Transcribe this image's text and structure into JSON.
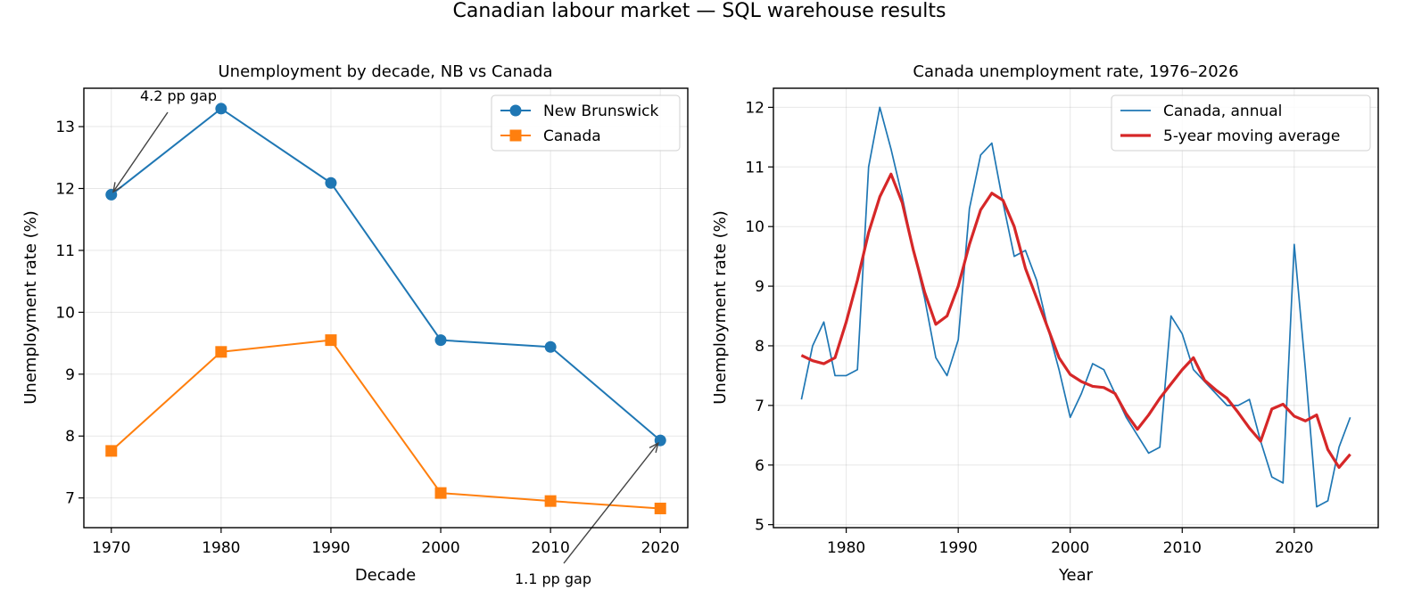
{
  "figure": {
    "suptitle": "Canadian labour market — SQL warehouse results"
  },
  "chart_data": [
    {
      "type": "line",
      "title": "Unemployment by decade, NB vs Canada",
      "xlabel": "Decade",
      "ylabel": "Unemployment rate (%)",
      "xlim": [
        1967.5,
        2022.5
      ],
      "ylim": [
        6.52,
        13.62
      ],
      "xticks": [
        "1970",
        "1980",
        "1990",
        "2000",
        "2010",
        "2020"
      ],
      "yticks": [
        "7",
        "8",
        "9",
        "10",
        "11",
        "12",
        "13"
      ],
      "grid": true,
      "legend_position": "upper right",
      "categories": [
        1970,
        1980,
        1990,
        2000,
        2010,
        2020
      ],
      "series": [
        {
          "name": "New Brunswick",
          "values": [
            11.9,
            13.29,
            12.09,
            9.55,
            9.44,
            7.93
          ],
          "color": "#1f77b4",
          "marker": "circle"
        },
        {
          "name": "Canada",
          "values": [
            7.76,
            9.36,
            9.55,
            7.08,
            6.95,
            6.83
          ],
          "color": "#ff7f0e",
          "marker": "square"
        }
      ],
      "annotations": [
        {
          "text": "4.2 pp gap",
          "x": 1970,
          "y": 11.9
        },
        {
          "text": "1.1 pp gap",
          "x": 2020,
          "y": 7.93
        }
      ]
    },
    {
      "type": "line",
      "title": "Canada unemployment rate, 1976–2026",
      "xlabel": "Year",
      "ylabel": "Unemployment rate (%)",
      "xlim": [
        1973.5,
        2027.5
      ],
      "ylim": [
        4.95,
        12.32
      ],
      "xticks": [
        "1980",
        "1990",
        "2000",
        "2010",
        "2020"
      ],
      "yticks": [
        "5",
        "6",
        "7",
        "8",
        "9",
        "10",
        "11",
        "12"
      ],
      "grid": true,
      "legend_position": "upper right",
      "x": [
        1976,
        1977,
        1978,
        1979,
        1980,
        1981,
        1982,
        1983,
        1984,
        1985,
        1986,
        1987,
        1988,
        1989,
        1990,
        1991,
        1992,
        1993,
        1994,
        1995,
        1996,
        1997,
        1998,
        1999,
        2000,
        2001,
        2002,
        2003,
        2004,
        2005,
        2006,
        2007,
        2008,
        2009,
        2010,
        2011,
        2012,
        2013,
        2014,
        2015,
        2016,
        2017,
        2018,
        2019,
        2020,
        2021,
        2022,
        2023,
        2024,
        2025
      ],
      "series": [
        {
          "name": "Canada, annual",
          "color": "#1f77b4",
          "values": [
            7.1,
            8.0,
            8.4,
            7.5,
            7.5,
            7.6,
            11.0,
            12.0,
            11.3,
            10.5,
            9.6,
            8.8,
            7.8,
            7.5,
            8.1,
            10.3,
            11.2,
            11.4,
            10.4,
            9.5,
            9.6,
            9.1,
            8.3,
            7.6,
            6.8,
            7.2,
            7.7,
            7.6,
            7.2,
            6.8,
            6.5,
            6.2,
            6.3,
            8.5,
            8.2,
            7.6,
            7.4,
            7.2,
            7.0,
            7.0,
            7.1,
            6.4,
            5.8,
            5.7,
            9.7,
            7.6,
            5.3,
            5.4,
            6.3,
            6.8
          ]
        },
        {
          "name": "5-year moving average",
          "color": "#d62728",
          "values": [
            7.84,
            7.75,
            7.7,
            7.8,
            8.4,
            9.1,
            9.9,
            10.5,
            10.88,
            10.4,
            9.6,
            8.9,
            8.36,
            8.5,
            9.0,
            9.7,
            10.28,
            10.56,
            10.44,
            10.0,
            9.3,
            8.8,
            8.3,
            7.8,
            7.52,
            7.4,
            7.32,
            7.3,
            7.2,
            6.86,
            6.6,
            6.84,
            7.12,
            7.36,
            7.6,
            7.8,
            7.42,
            7.26,
            7.12,
            6.88,
            6.62,
            6.4,
            6.94,
            7.02,
            6.82,
            6.74,
            6.84,
            6.26,
            5.96,
            6.18
          ]
        }
      ]
    }
  ]
}
